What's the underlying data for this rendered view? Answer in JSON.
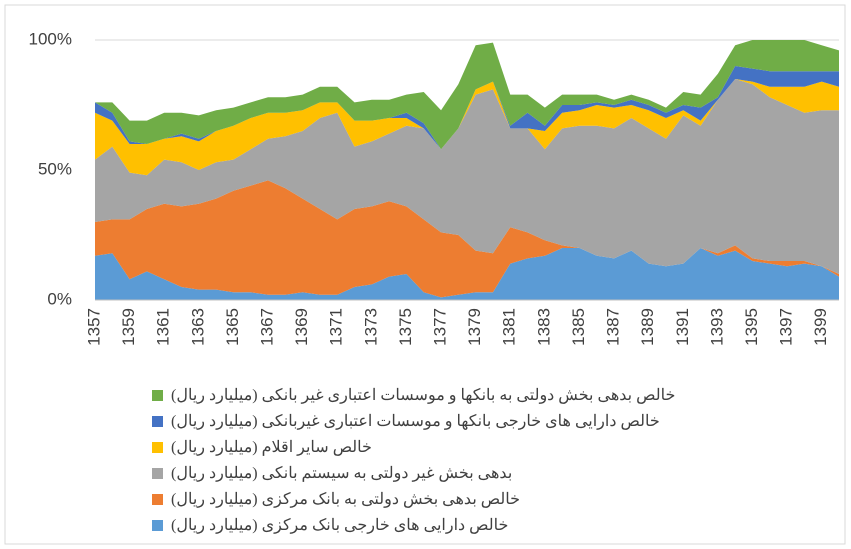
{
  "chart_data": {
    "type": "stacked-area",
    "categories": [
      "1357",
      null,
      "1359",
      null,
      "1361",
      null,
      "1363",
      null,
      "1365",
      null,
      "1367",
      null,
      "1369",
      null,
      "1371",
      null,
      "1373",
      null,
      "1375",
      null,
      "1377",
      null,
      "1379",
      null,
      "1381",
      null,
      "1383",
      null,
      "1385",
      null,
      "1387",
      null,
      "1389",
      null,
      "1391",
      null,
      "1393",
      null,
      "1395",
      null,
      "1397",
      null,
      "1399",
      null
    ],
    "series": [
      {
        "name": "خالص دارایی های خارجی بانک مرکزی (میلیارد ریال)",
        "color": "#5b9bd5",
        "values": [
          17,
          18,
          8,
          11,
          8,
          5,
          4,
          4,
          3,
          3,
          2,
          2,
          3,
          2,
          2,
          5,
          6,
          9,
          10,
          3,
          1,
          2,
          3,
          3,
          14,
          16,
          17,
          20,
          20,
          17,
          16,
          19,
          14,
          13,
          14,
          20,
          17,
          19,
          15,
          14,
          13,
          14,
          13,
          9
        ]
      },
      {
        "name": "خالص بدهی بخش دولتی به بانک مرکزی (میلیارد ریال)",
        "color": "#ed7d31",
        "values": [
          13,
          13,
          23,
          24,
          29,
          31,
          33,
          35,
          39,
          41,
          44,
          41,
          36,
          33,
          29,
          30,
          30,
          29,
          26,
          28,
          25,
          23,
          16,
          15,
          14,
          10,
          6,
          1,
          0,
          0,
          0,
          0,
          0,
          0,
          0,
          0,
          1,
          2,
          1,
          1,
          2,
          1,
          0,
          1
        ]
      },
      {
        "name": "بدهی بخش غیر دولتی به سیستم بانکی (میلیارد ریال)",
        "color": "#a5a5a5",
        "values": [
          24,
          28,
          18,
          13,
          17,
          17,
          13,
          14,
          12,
          14,
          16,
          20,
          26,
          35,
          41,
          24,
          25,
          26,
          31,
          35,
          32,
          41,
          60,
          63,
          38,
          40,
          35,
          45,
          47,
          50,
          50,
          51,
          52,
          49,
          57,
          47,
          59,
          64,
          67,
          63,
          60,
          57,
          60,
          63
        ]
      },
      {
        "name": "خالص سایر اقلام (میلیارد ریال)",
        "color": "#ffc000",
        "values": [
          18,
          10,
          11,
          12,
          8,
          10,
          11,
          12,
          13,
          12,
          10,
          9,
          8,
          6,
          4,
          10,
          8,
          6,
          3,
          0,
          0,
          0,
          2,
          3,
          0,
          0,
          7,
          6,
          6,
          8,
          8,
          5,
          7,
          8,
          2,
          2,
          0,
          0,
          1,
          4,
          7,
          10,
          11,
          9
        ]
      },
      {
        "name": "خالص دارایی های خارجی بانکها و موسسات اعتباری غیربانکی (میلیارد ریال)",
        "color": "#4472c4",
        "values": [
          4,
          3,
          1,
          0,
          0,
          1,
          1,
          0,
          0,
          0,
          0,
          0,
          0,
          0,
          0,
          0,
          0,
          0,
          2,
          2,
          0,
          0,
          0,
          0,
          1,
          6,
          2,
          3,
          2,
          1,
          1,
          2,
          2,
          2,
          2,
          5,
          1,
          5,
          5,
          6,
          6,
          6,
          4,
          6
        ]
      },
      {
        "name": "خالص بدهی بخش دولتی به بانکها و موسسات اعتباری غیر بانکی (میلیارد ریال)",
        "color": "#70ad47",
        "values": [
          0,
          4,
          8,
          9,
          10,
          8,
          9,
          8,
          7,
          6,
          6,
          6,
          6,
          6,
          6,
          7,
          8,
          7,
          7,
          12,
          15,
          17,
          17,
          15,
          12,
          7,
          7,
          4,
          4,
          3,
          2,
          2,
          2,
          2,
          5,
          5,
          9,
          8,
          11,
          12,
          12,
          12,
          10,
          8
        ]
      }
    ],
    "ylim": [
      0,
      100
    ],
    "yticks": [
      {
        "value": 0,
        "label": "0%"
      },
      {
        "value": 50,
        "label": "50%"
      },
      {
        "value": 100,
        "label": "100%"
      }
    ],
    "grid": true
  }
}
